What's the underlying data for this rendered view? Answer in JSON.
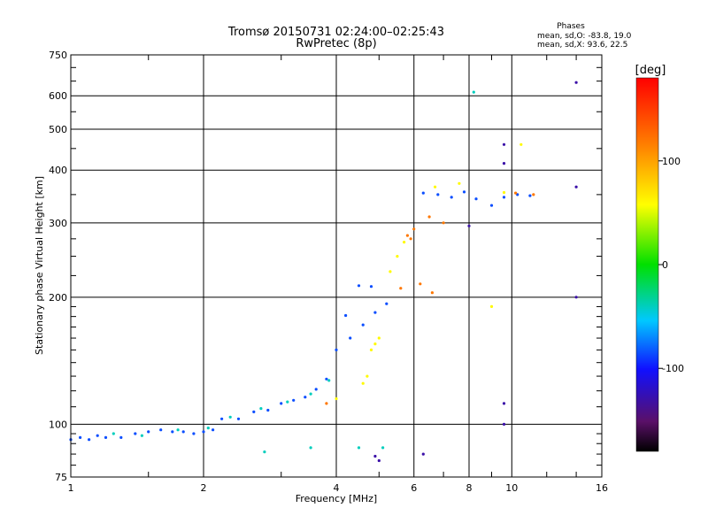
{
  "chart_data": {
    "type": "scatter",
    "title": "Tromsø 20150731 02:24:00–02:25:43",
    "subtitle": "RwPretec (8p)",
    "stats": {
      "heading": "Phases",
      "line1": "mean, sd,O: -83.8, 19.0",
      "line2": "mean, sd,X:  93.6, 22.5"
    },
    "xlabel": "Frequency [MHz]",
    "ylabel": "Stationary phase Virtual Height [km]",
    "x_scale": "log",
    "y_scale": "log",
    "xlim": [
      1,
      16
    ],
    "ylim": [
      75,
      750
    ],
    "x_ticks": [
      1,
      2,
      4,
      6,
      8,
      10,
      16
    ],
    "x_tick_labels": [
      "1",
      "2",
      "4",
      "6",
      "8",
      "10",
      "16"
    ],
    "y_ticks": [
      75,
      100,
      200,
      300,
      400,
      500,
      600,
      750
    ],
    "y_tick_labels": [
      "75",
      "100",
      "200",
      "300",
      "400",
      "500",
      "600",
      "750"
    ],
    "grid": true,
    "colorbar": {
      "label": "[deg]",
      "range": [
        -180,
        180
      ],
      "ticks": [
        100,
        0,
        -100
      ],
      "tick_labels": [
        "100",
        "0",
        "-100"
      ]
    },
    "series": [
      {
        "phase": -85,
        "points": [
          [
            1.0,
            92
          ],
          [
            1.05,
            93
          ],
          [
            1.1,
            92
          ],
          [
            1.15,
            94
          ],
          [
            1.2,
            93
          ],
          [
            1.3,
            93
          ],
          [
            1.4,
            95
          ],
          [
            1.5,
            96
          ],
          [
            1.6,
            97
          ],
          [
            1.7,
            96
          ],
          [
            1.8,
            96
          ],
          [
            1.9,
            95
          ],
          [
            2.0,
            96
          ],
          [
            2.1,
            97
          ],
          [
            2.2,
            103
          ],
          [
            2.4,
            103
          ],
          [
            2.6,
            107
          ],
          [
            2.8,
            108
          ],
          [
            3.0,
            112
          ],
          [
            3.2,
            114
          ],
          [
            3.4,
            116
          ],
          [
            3.6,
            121
          ],
          [
            3.8,
            128
          ],
          [
            4.0,
            150
          ],
          [
            4.3,
            160
          ],
          [
            4.6,
            172
          ],
          [
            4.9,
            184
          ],
          [
            5.2,
            193
          ],
          [
            4.2,
            181
          ],
          [
            4.5,
            213
          ],
          [
            4.8,
            212
          ],
          [
            6.3,
            353
          ],
          [
            6.8,
            350
          ],
          [
            7.3,
            345
          ],
          [
            7.8,
            355
          ],
          [
            8.3,
            342
          ],
          [
            9.0,
            330
          ],
          [
            9.6,
            345
          ],
          [
            10.3,
            350
          ],
          [
            11.0,
            348
          ]
        ]
      },
      {
        "phase": -40,
        "points": [
          [
            1.25,
            95
          ],
          [
            1.45,
            94
          ],
          [
            1.75,
            97
          ],
          [
            2.05,
            98
          ],
          [
            2.3,
            104
          ],
          [
            2.7,
            109
          ],
          [
            3.1,
            113
          ],
          [
            3.5,
            118
          ],
          [
            3.85,
            127
          ],
          [
            3.5,
            88
          ],
          [
            2.75,
            86
          ],
          [
            4.5,
            88
          ],
          [
            5.1,
            88
          ],
          [
            8.2,
            612
          ]
        ]
      },
      {
        "phase": 60,
        "points": [
          [
            4.8,
            150
          ],
          [
            4.9,
            155
          ],
          [
            5.0,
            160
          ],
          [
            4.7,
            130
          ],
          [
            4.6,
            125
          ],
          [
            5.3,
            230
          ],
          [
            5.5,
            250
          ],
          [
            5.7,
            270
          ],
          [
            6.7,
            365
          ],
          [
            7.6,
            372
          ],
          [
            9.6,
            354
          ],
          [
            10.5,
            460
          ],
          [
            9.0,
            190
          ],
          [
            4.0,
            115
          ]
        ]
      },
      {
        "phase": 120,
        "points": [
          [
            5.8,
            280
          ],
          [
            6.0,
            290
          ],
          [
            5.9,
            275
          ],
          [
            6.5,
            310
          ],
          [
            7.0,
            300
          ],
          [
            5.6,
            210
          ],
          [
            6.2,
            215
          ],
          [
            6.6,
            205
          ],
          [
            3.8,
            112
          ],
          [
            10.2,
            353
          ],
          [
            11.2,
            350
          ]
        ]
      },
      {
        "phase": -130,
        "points": [
          [
            9.6,
            460
          ],
          [
            9.6,
            415
          ],
          [
            14.0,
            645
          ],
          [
            14.0,
            365
          ],
          [
            8.0,
            295
          ],
          [
            9.6,
            112
          ],
          [
            14.0,
            200
          ],
          [
            9.6,
            100
          ],
          [
            6.3,
            85
          ],
          [
            4.9,
            84
          ],
          [
            5.0,
            82
          ]
        ]
      }
    ]
  }
}
